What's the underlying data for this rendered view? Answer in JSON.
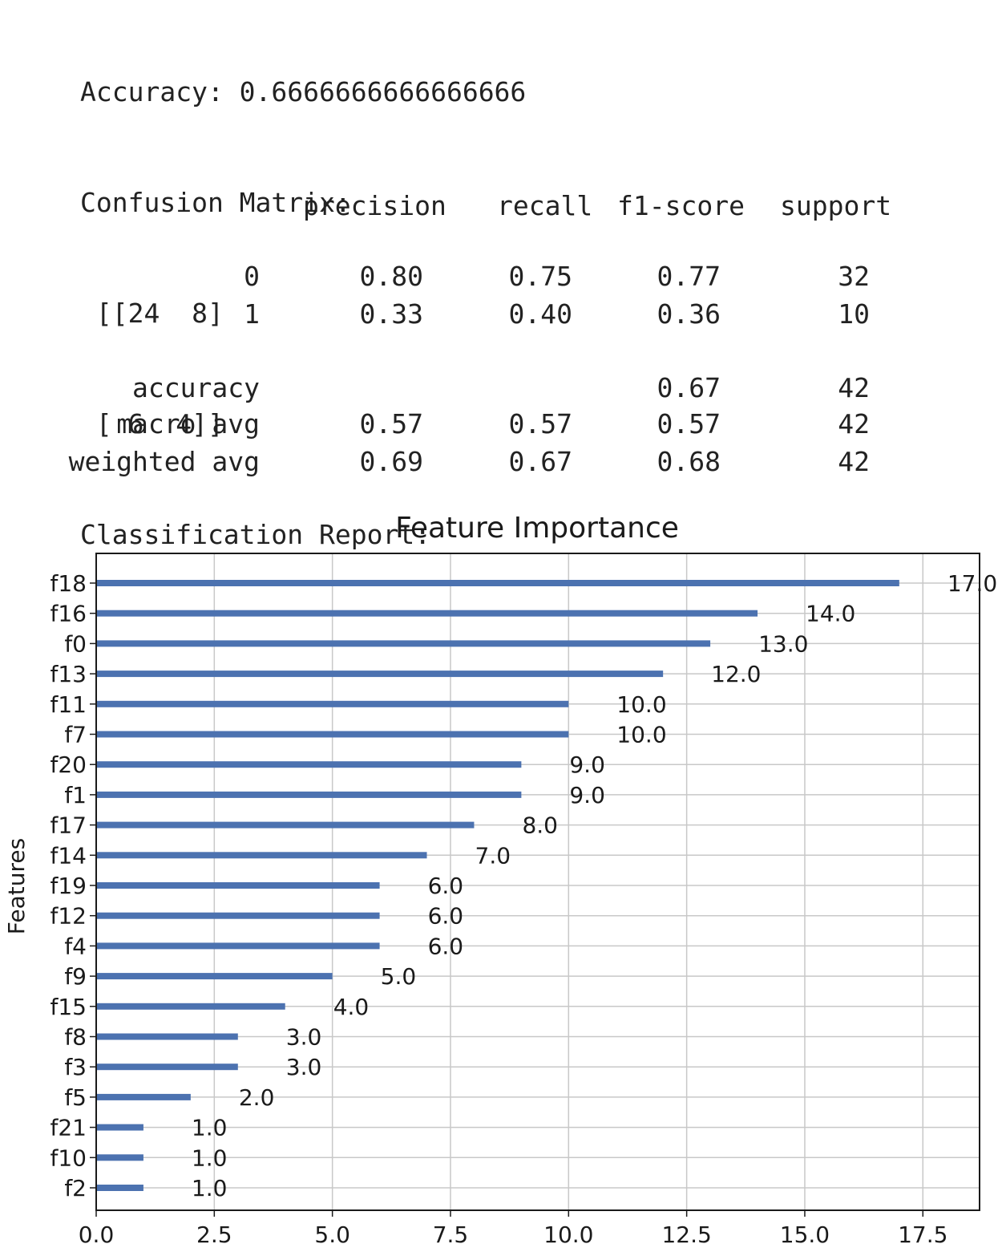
{
  "output": {
    "accuracy_line": "Accuracy: 0.6666666666666666",
    "confusion_header": "Confusion Matrix:",
    "confusion_row1": " [[24  8]",
    "confusion_row2": " [ 6  4]]",
    "report_header": "Classification Report:"
  },
  "report": {
    "columns": [
      "precision",
      "recall",
      "f1-score",
      "support"
    ],
    "rows": [
      {
        "label": "0",
        "precision": "0.80",
        "recall": "0.75",
        "f1": "0.77",
        "support": "32"
      },
      {
        "label": "1",
        "precision": "0.33",
        "recall": "0.40",
        "f1": "0.36",
        "support": "10"
      },
      {
        "label": "accuracy",
        "precision": "",
        "recall": "",
        "f1": "0.67",
        "support": "42"
      },
      {
        "label": "macro avg",
        "precision": "0.57",
        "recall": "0.57",
        "f1": "0.57",
        "support": "42"
      },
      {
        "label": "weighted avg",
        "precision": "0.69",
        "recall": "0.67",
        "f1": "0.68",
        "support": "42"
      }
    ]
  },
  "chart_data": {
    "type": "bar",
    "orientation": "horizontal",
    "title": "Feature Importance",
    "ylabel": "Features",
    "xlabel": "",
    "categories": [
      "f18",
      "f16",
      "f0",
      "f13",
      "f11",
      "f7",
      "f20",
      "f1",
      "f17",
      "f14",
      "f19",
      "f12",
      "f4",
      "f9",
      "f15",
      "f8",
      "f3",
      "f5",
      "f21",
      "f10",
      "f2"
    ],
    "values": [
      17,
      14,
      13,
      12,
      10,
      10,
      9,
      9,
      8,
      7,
      6,
      6,
      6,
      5,
      4,
      3,
      3,
      2,
      1,
      1,
      1
    ],
    "value_labels": [
      "17.0",
      "14.0",
      "13.0",
      "12.0",
      "10.0",
      "10.0",
      "9.0",
      "9.0",
      "8.0",
      "7.0",
      "6.0",
      "6.0",
      "6.0",
      "5.0",
      "4.0",
      "3.0",
      "3.0",
      "2.0",
      "1.0",
      "1.0",
      "1.0"
    ],
    "xticks": [
      "0.0",
      "2.5",
      "5.0",
      "7.5",
      "10.0",
      "12.5",
      "15.0",
      "17.5"
    ],
    "xlim": [
      0,
      18.7
    ],
    "grid": true,
    "bar_color": "#4c72b0"
  }
}
